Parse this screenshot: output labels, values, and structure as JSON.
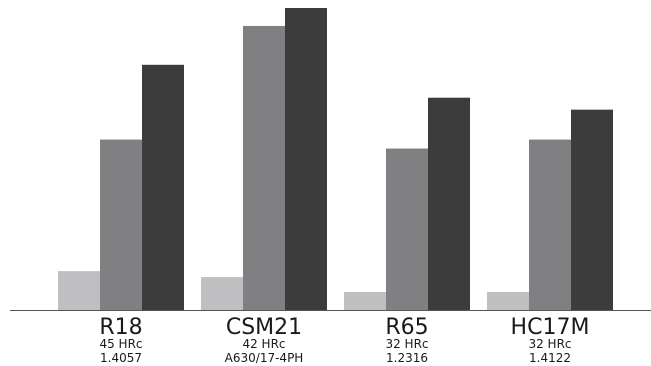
{
  "chart_data": {
    "type": "bar",
    "categories": [
      "R18",
      "CSM21",
      "R65",
      "HC17M"
    ],
    "category_sublabels": [
      [
        "45 HRc",
        "1.4057"
      ],
      [
        "42 HRc",
        "A630/17-4PH"
      ],
      [
        "32 HRc",
        "1.2316"
      ],
      [
        "32 HRc",
        "1.4122"
      ]
    ],
    "series": [
      {
        "values": [
          13,
          11,
          6,
          6
        ],
        "color": "#bfbfc1"
      },
      {
        "values": [
          57,
          95,
          54,
          57
        ],
        "color": "#808082"
      },
      {
        "values": [
          82,
          101,
          71,
          67
        ],
        "color": "#3c3c3c"
      }
    ],
    "ylim": [
      0,
      101
    ],
    "grid": false,
    "legend": "none",
    "xlabel": "",
    "ylabel": ""
  }
}
